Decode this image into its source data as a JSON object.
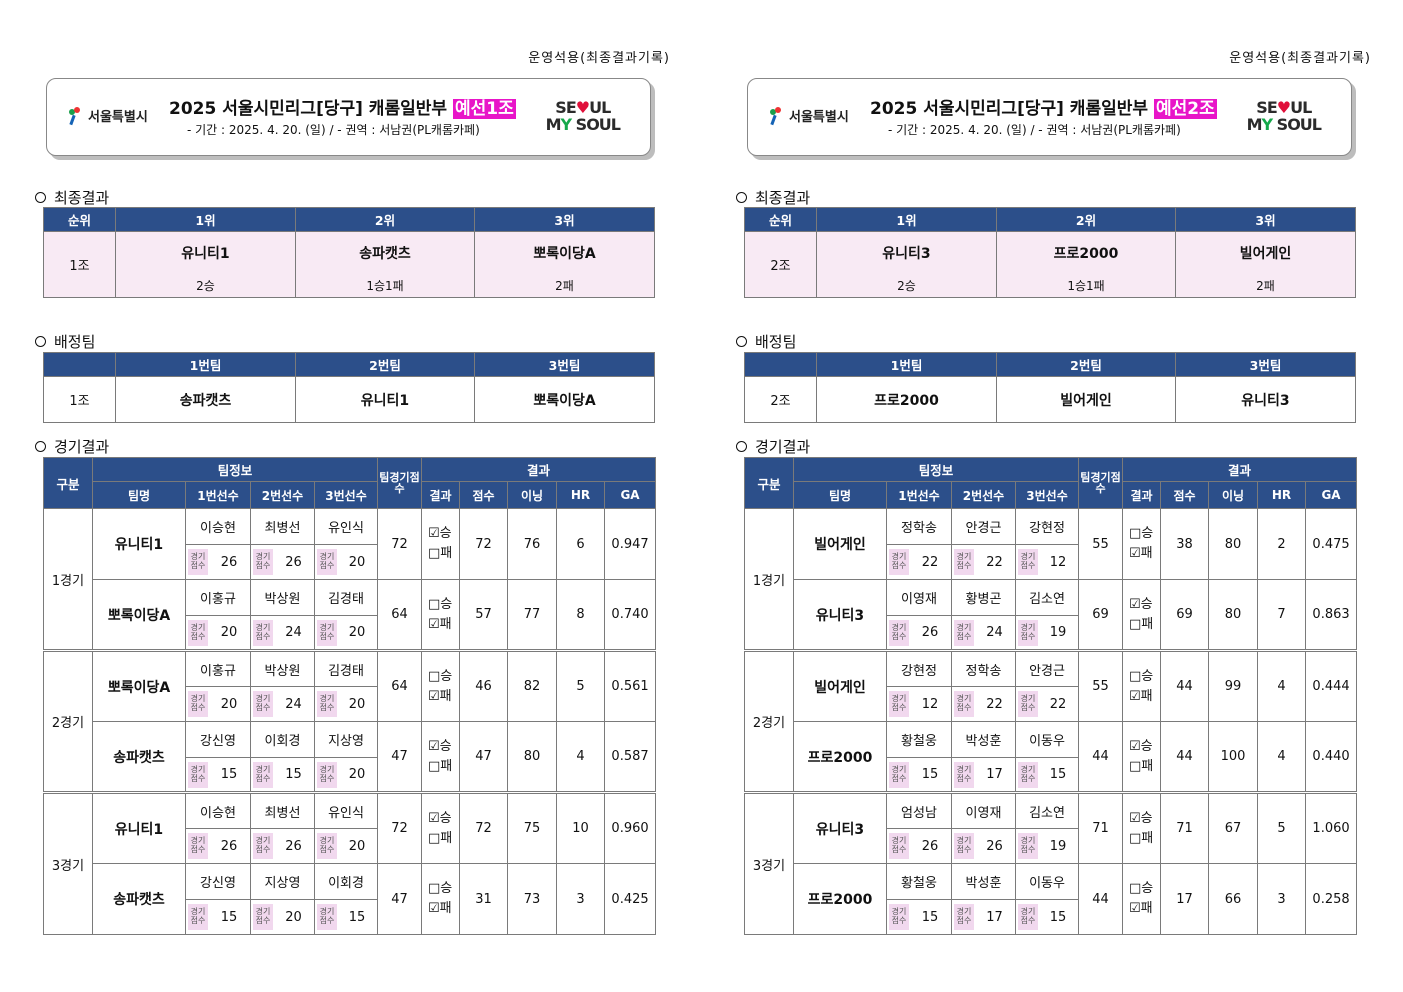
{
  "op_note": "운영석용(최종결과기록)",
  "logo_text": "서울특별시",
  "my_soul": {
    "line1": "SEOUL",
    "line2": "MY SOUL"
  },
  "labels": {
    "final": "최종결과",
    "assign": "배정팀",
    "games": "경기결과",
    "rank": "순위",
    "first": "1위",
    "second": "2위",
    "third": "3위",
    "team1": "1번팀",
    "team2": "2번팀",
    "team3": "3번팀",
    "gubun": "구분",
    "team_info": "팀정보",
    "team_score": "팀경기점수",
    "result": "결과",
    "team_name": "팀명",
    "p1": "1번선수",
    "p2": "2번선수",
    "p3": "3번선수",
    "res": "결과",
    "score": "점수",
    "inning": "이닝",
    "hr": "HR",
    "ga": "GA",
    "score_tag": "경기점수",
    "win": "☑승",
    "win_off": "□승",
    "lose": "☑패",
    "lose_off": "□패"
  },
  "panels": [
    {
      "title": "2025  서울시민리그[당구] 캐롬일반부",
      "badge": "예선1조",
      "subtitle": "- 기간 : 2025. 4. 20. (일) / - 권역 : 서남권(PL캐롬카페)",
      "group": "1조",
      "final": [
        {
          "team": "유니티1",
          "record": "2승"
        },
        {
          "team": "송파캣츠",
          "record": "1승1패"
        },
        {
          "team": "뽀록이당A",
          "record": "2패"
        }
      ],
      "assign": [
        "송파캣츠",
        "유니티1",
        "뽀록이당A"
      ],
      "games": [
        {
          "label": "1경기",
          "rows": [
            {
              "team": "유니티1",
              "players": [
                "이승현",
                "최병선",
                "유인식"
              ],
              "pscores": [
                "26",
                "26",
                "20"
              ],
              "team_score": "72",
              "win": true,
              "score": "72",
              "inning": "76",
              "hr": "6",
              "ga": "0.947"
            },
            {
              "team": "뽀록이당A",
              "players": [
                "이홍규",
                "박상원",
                "김경태"
              ],
              "pscores": [
                "20",
                "24",
                "20"
              ],
              "team_score": "64",
              "win": false,
              "score": "57",
              "inning": "77",
              "hr": "8",
              "ga": "0.740"
            }
          ]
        },
        {
          "label": "2경기",
          "rows": [
            {
              "team": "뽀록이당A",
              "players": [
                "이홍규",
                "박상원",
                "김경태"
              ],
              "pscores": [
                "20",
                "24",
                "20"
              ],
              "team_score": "64",
              "win": false,
              "score": "46",
              "inning": "82",
              "hr": "5",
              "ga": "0.561"
            },
            {
              "team": "송파캣츠",
              "players": [
                "강신영",
                "이회경",
                "지상영"
              ],
              "pscores": [
                "15",
                "15",
                "20"
              ],
              "team_score": "47",
              "win": true,
              "score": "47",
              "inning": "80",
              "hr": "4",
              "ga": "0.587"
            }
          ]
        },
        {
          "label": "3경기",
          "rows": [
            {
              "team": "유니티1",
              "players": [
                "이승현",
                "최병선",
                "유인식"
              ],
              "pscores": [
                "26",
                "26",
                "20"
              ],
              "team_score": "72",
              "win": true,
              "score": "72",
              "inning": "75",
              "hr": "10",
              "ga": "0.960"
            },
            {
              "team": "송파캣츠",
              "players": [
                "강신영",
                "지상영",
                "이회경"
              ],
              "pscores": [
                "15",
                "20",
                "15"
              ],
              "team_score": "47",
              "win": false,
              "score": "31",
              "inning": "73",
              "hr": "3",
              "ga": "0.425"
            }
          ]
        }
      ]
    },
    {
      "title": "2025  서울시민리그[당구] 캐롬일반부",
      "badge": "예선2조",
      "subtitle": "- 기간 : 2025. 4. 20. (일) / - 권역 : 서남권(PL캐롬카페)",
      "group": "2조",
      "final": [
        {
          "team": "유니티3",
          "record": "2승"
        },
        {
          "team": "프로2000",
          "record": "1승1패"
        },
        {
          "team": "빌어게인",
          "record": "2패"
        }
      ],
      "assign": [
        "프로2000",
        "빌어게인",
        "유니티3"
      ],
      "games": [
        {
          "label": "1경기",
          "rows": [
            {
              "team": "빌어게인",
              "players": [
                "정학송",
                "안경근",
                "강현정"
              ],
              "pscores": [
                "22",
                "22",
                "12"
              ],
              "team_score": "55",
              "win": false,
              "score": "38",
              "inning": "80",
              "hr": "2",
              "ga": "0.475"
            },
            {
              "team": "유니티3",
              "players": [
                "이영재",
                "황병곤",
                "김소연"
              ],
              "pscores": [
                "26",
                "24",
                "19"
              ],
              "team_score": "69",
              "win": true,
              "score": "69",
              "inning": "80",
              "hr": "7",
              "ga": "0.863"
            }
          ]
        },
        {
          "label": "2경기",
          "rows": [
            {
              "team": "빌어게인",
              "players": [
                "강현정",
                "정학송",
                "안경근"
              ],
              "pscores": [
                "12",
                "22",
                "22"
              ],
              "team_score": "55",
              "win": false,
              "score": "44",
              "inning": "99",
              "hr": "4",
              "ga": "0.444"
            },
            {
              "team": "프로2000",
              "players": [
                "황철웅",
                "박성훈",
                "이동우"
              ],
              "pscores": [
                "15",
                "17",
                "15"
              ],
              "team_score": "44",
              "win": true,
              "score": "44",
              "inning": "100",
              "hr": "4",
              "ga": "0.440"
            }
          ]
        },
        {
          "label": "3경기",
          "rows": [
            {
              "team": "유니티3",
              "players": [
                "엄성남",
                "이영재",
                "김소연"
              ],
              "pscores": [
                "26",
                "26",
                "19"
              ],
              "team_score": "71",
              "win": true,
              "score": "71",
              "inning": "67",
              "hr": "5",
              "ga": "1.060"
            },
            {
              "team": "프로2000",
              "players": [
                "황철웅",
                "박성훈",
                "이동우"
              ],
              "pscores": [
                "15",
                "17",
                "15"
              ],
              "team_score": "44",
              "win": false,
              "score": "17",
              "inning": "66",
              "hr": "3",
              "ga": "0.258"
            }
          ]
        }
      ]
    }
  ]
}
